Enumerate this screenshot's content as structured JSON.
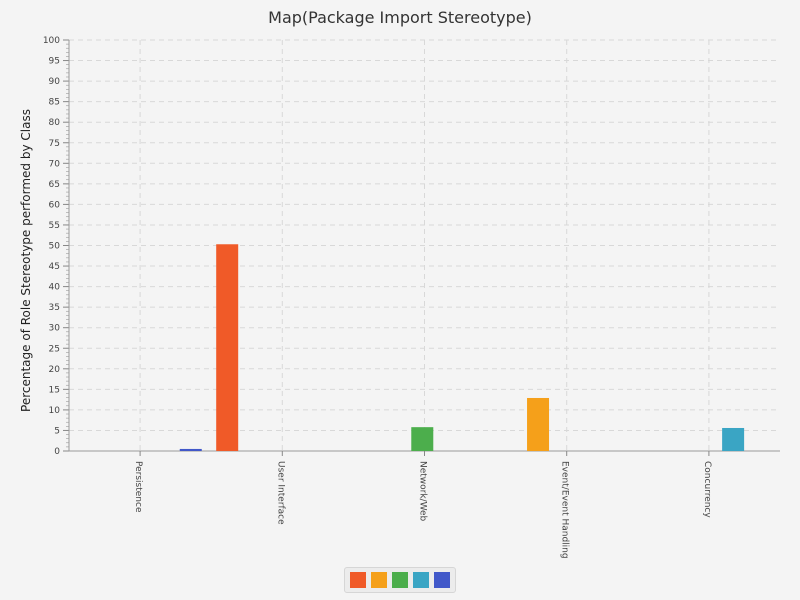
{
  "chart_data": {
    "type": "bar",
    "title": "Map(Package Import Stereotype)",
    "xlabel": "",
    "ylabel": "Percentage of Role Stereotype performed by Class",
    "ylim": [
      0,
      100
    ],
    "y_ticks": [
      "0",
      "5",
      "10",
      "15",
      "20",
      "25",
      "30",
      "35",
      "40",
      "45",
      "50",
      "55",
      "60",
      "65",
      "70",
      "75",
      "80",
      "85",
      "90",
      "95",
      "100"
    ],
    "grid": true,
    "legend_position": "bottom",
    "categories": [
      "Persistence",
      "User Interface",
      "Network/Web",
      "Event/Event Handling",
      "Concurrency"
    ],
    "series": [
      {
        "color": "#f05a28",
        "values": [
          0,
          50.3,
          0,
          0,
          0
        ]
      },
      {
        "color": "#f5a01a",
        "values": [
          0,
          0,
          0,
          12.9,
          0
        ]
      },
      {
        "color": "#4cae4c",
        "values": [
          0,
          0,
          5.8,
          0,
          0
        ]
      },
      {
        "color": "#3aa5c4",
        "values": [
          0,
          0,
          0,
          0,
          5.6
        ]
      },
      {
        "color": "#4158c9",
        "values": [
          0.5,
          0,
          0,
          0,
          0
        ]
      }
    ]
  }
}
